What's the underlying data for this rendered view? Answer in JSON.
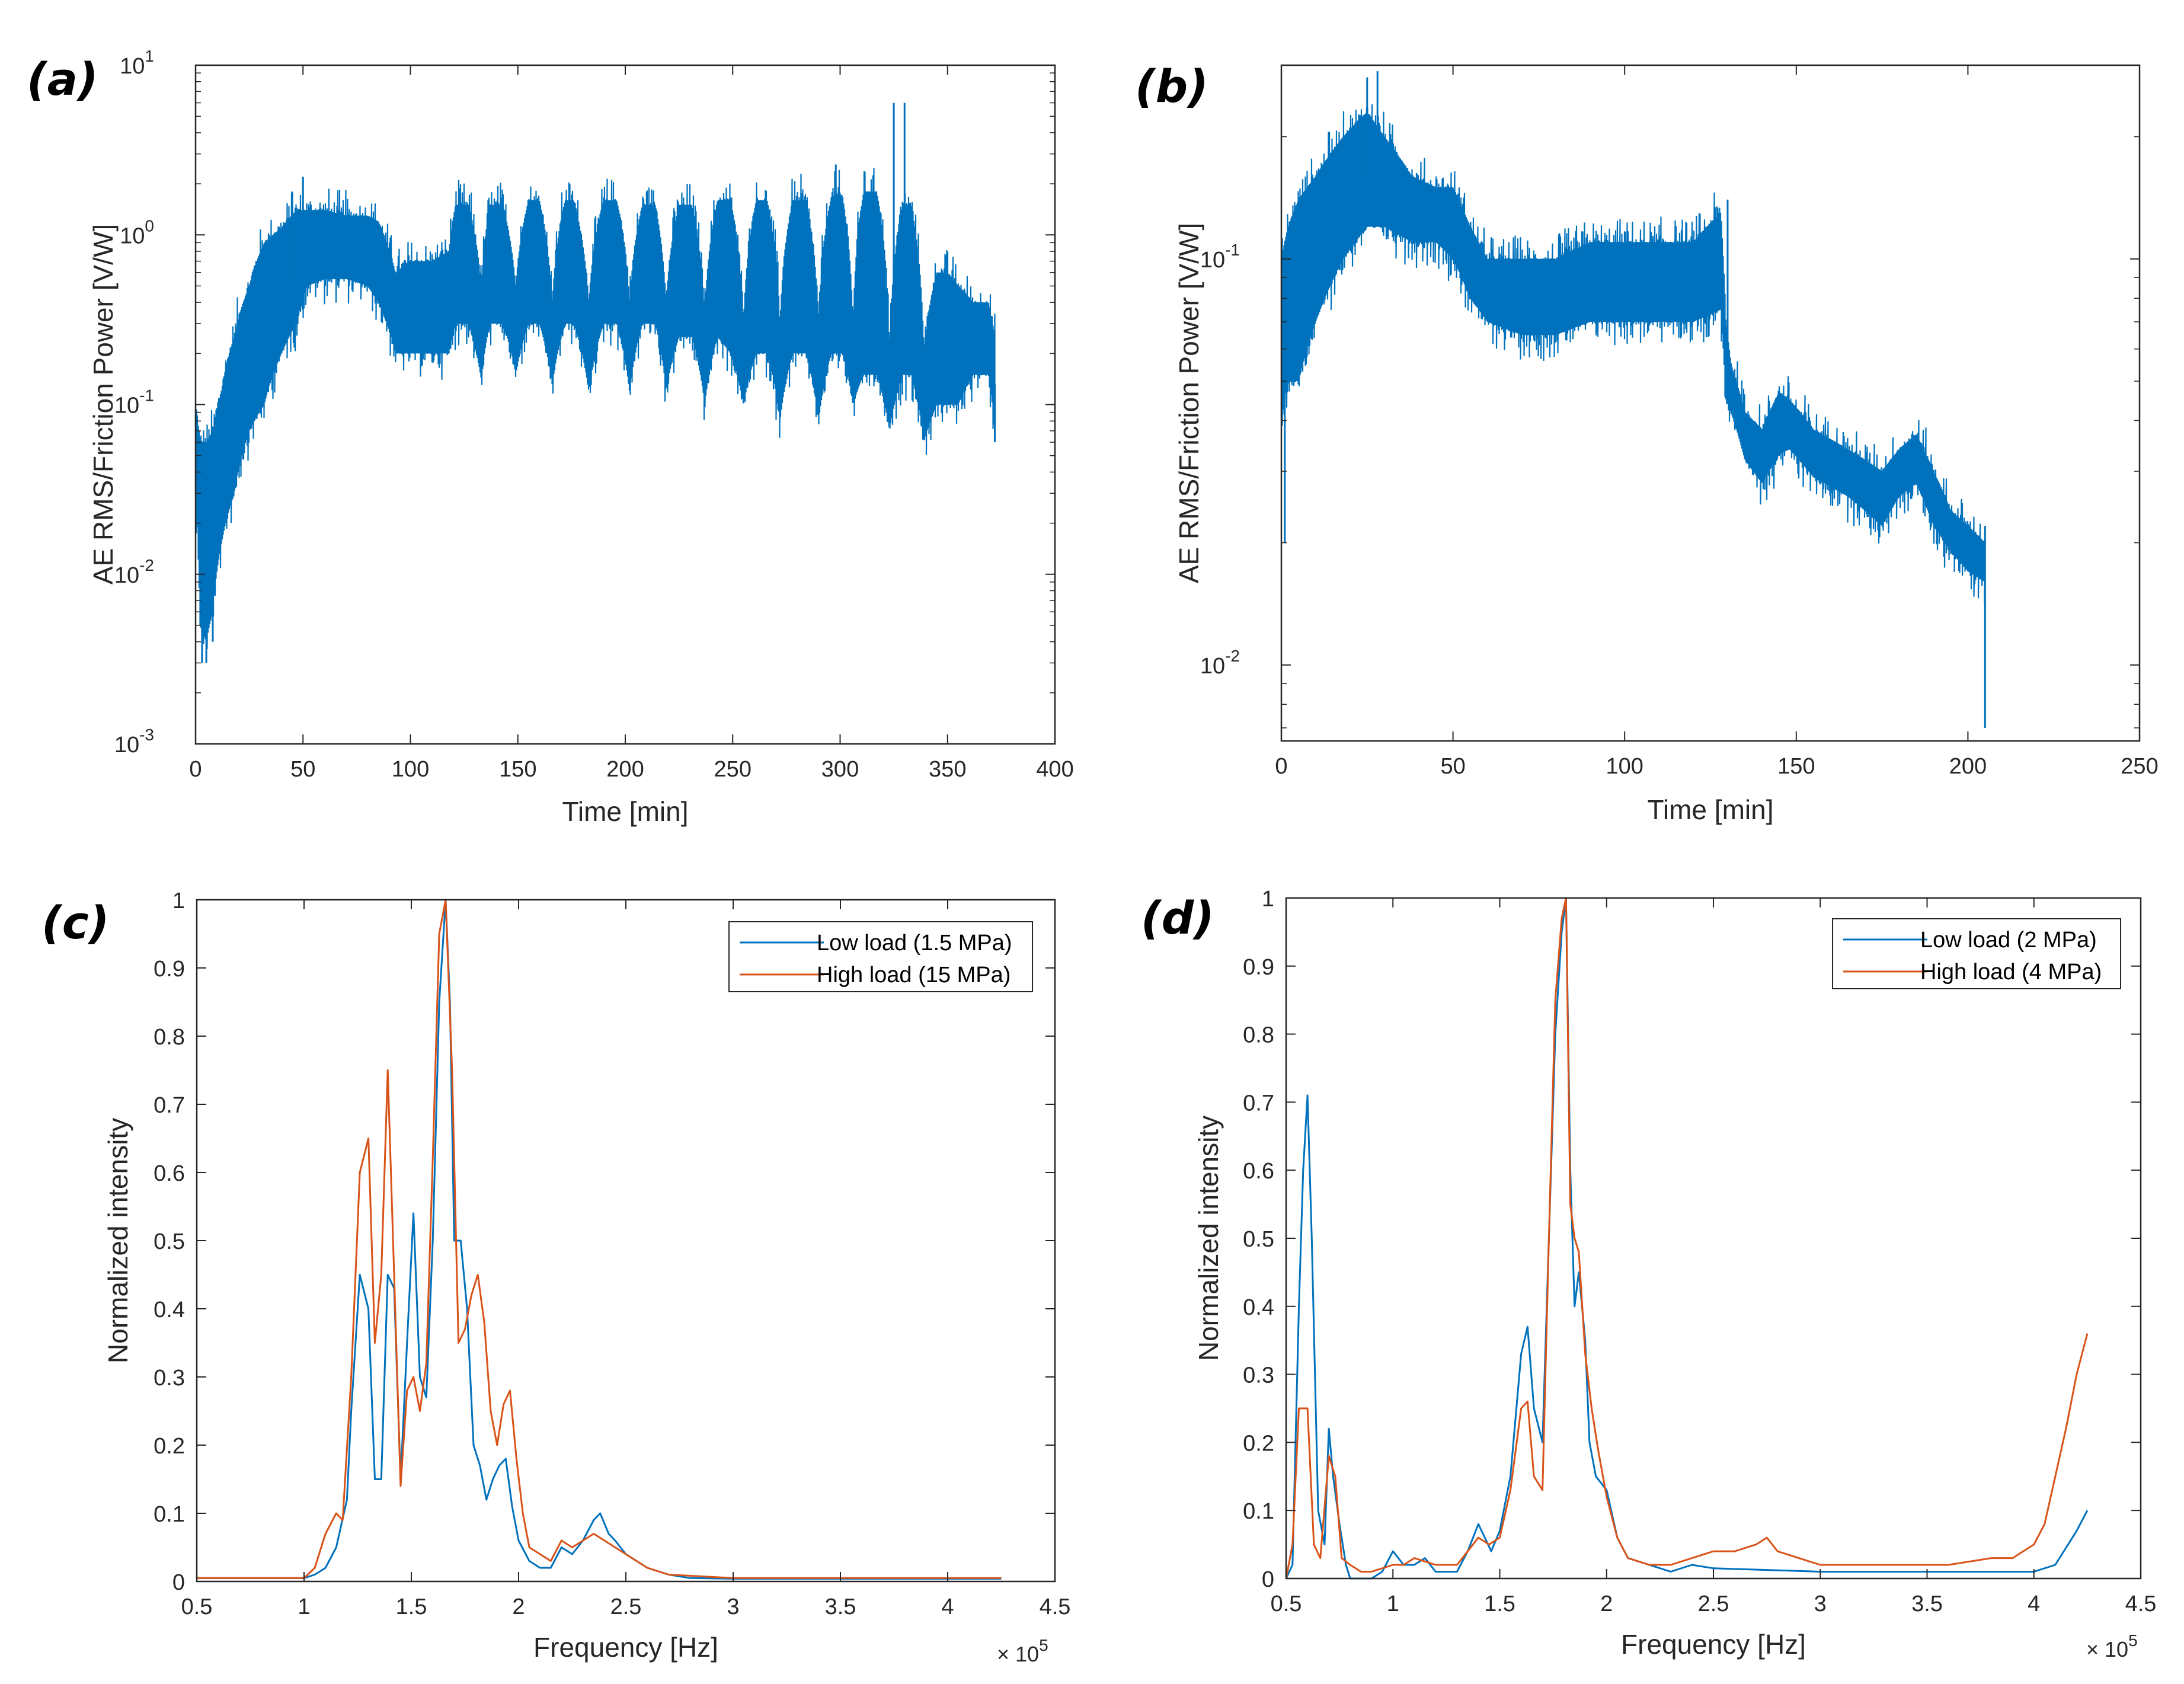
{
  "colors": {
    "blue": "#0072BD",
    "orange": "#D95319",
    "axis": "#262626"
  },
  "chart_data": [
    {
      "id": "a",
      "panel_label": "(a)",
      "type": "line",
      "yscale": "log",
      "title": "",
      "xlabel": "Time [min]",
      "ylabel": "AE RMS/Friction Power [V/W]",
      "xlim": [
        0,
        400
      ],
      "ylim": [
        0.001,
        10
      ],
      "xticks": [
        0,
        50,
        100,
        150,
        200,
        250,
        300,
        350,
        400
      ],
      "xtick_labels": [
        "0",
        "50",
        "100",
        "150",
        "200",
        "250",
        "300",
        "350",
        "400"
      ],
      "yticks": [
        0.001,
        0.01,
        0.1,
        1,
        10
      ],
      "ytick_labels": [
        {
          "base": "10",
          "exp": "-3"
        },
        {
          "base": "10",
          "exp": "-2"
        },
        {
          "base": "10",
          "exp": "-1"
        },
        {
          "base": "10",
          "exp": "0"
        },
        {
          "base": "10",
          "exp": "1"
        }
      ],
      "series": [
        {
          "name": "AE RMS/Friction Power",
          "color": "#0072BD",
          "band": {
            "x": [
              0,
              2,
              5,
              8,
              12,
              18,
              25,
              32,
              40,
              47,
              52,
              60,
              70,
              80,
              85,
              93,
              100,
              110,
              118,
              121,
              127,
              133,
              137,
              143,
              149,
              155,
              160,
              166,
              172,
              176,
              183,
              190,
              196,
              202,
              208,
              214,
              219,
              225,
              231,
              237,
              243,
              249,
              255,
              261,
              266,
              272,
              278,
              284,
              290,
              296,
              301,
              306,
              311,
              317,
              323,
              329,
              333,
              339,
              345,
              350,
              355,
              362,
              369,
              372
            ],
            "lo": [
              0.03,
              0.005,
              0.004,
              0.006,
              0.015,
              0.03,
              0.07,
              0.1,
              0.2,
              0.3,
              0.5,
              0.55,
              0.55,
              0.5,
              0.4,
              0.2,
              0.2,
              0.2,
              0.2,
              0.3,
              0.3,
              0.14,
              0.3,
              0.3,
              0.15,
              0.3,
              0.3,
              0.13,
              0.3,
              0.3,
              0.12,
              0.3,
              0.3,
              0.12,
              0.3,
              0.3,
              0.12,
              0.25,
              0.25,
              0.1,
              0.25,
              0.2,
              0.1,
              0.2,
              0.2,
              0.08,
              0.2,
              0.2,
              0.08,
              0.2,
              0.2,
              0.1,
              0.15,
              0.15,
              0.07,
              0.15,
              0.15,
              0.06,
              0.1,
              0.1,
              0.1,
              0.15,
              0.15,
              0.07
            ],
            "hi": [
              0.1,
              0.06,
              0.06,
              0.07,
              0.12,
              0.25,
              0.5,
              0.9,
              1.1,
              1.4,
              1.4,
              1.4,
              1.3,
              1.3,
              1.2,
              0.6,
              0.7,
              0.7,
              0.8,
              1.5,
              1.5,
              0.5,
              1.5,
              1.5,
              0.5,
              1.6,
              1.6,
              0.4,
              1.6,
              1.6,
              0.4,
              1.6,
              1.6,
              0.4,
              1.5,
              1.5,
              0.4,
              1.5,
              1.5,
              0.35,
              1.6,
              1.6,
              0.3,
              1.6,
              1.6,
              0.3,
              1.6,
              1.6,
              0.3,
              1.7,
              1.7,
              0.3,
              1.8,
              1.8,
              0.2,
              1.5,
              1.5,
              0.2,
              0.6,
              0.6,
              0.5,
              0.4,
              0.4,
              0.25
            ]
          },
          "spikes": [
            [
              3,
              0.003
            ],
            [
              5,
              0.003
            ],
            [
              8,
              0.004
            ],
            [
              45,
              1.8
            ],
            [
              50,
              2.2
            ],
            [
              210,
              1.8
            ],
            [
              298,
              2.6
            ],
            [
              325,
              6.0
            ],
            [
              330,
              6.0
            ],
            [
              372,
              0.06
            ]
          ]
        }
      ]
    },
    {
      "id": "b",
      "panel_label": "(b)",
      "type": "line",
      "yscale": "log",
      "title": "",
      "xlabel": "Time [min]",
      "ylabel": "AE RMS/Friction Power [V/W]",
      "xlim": [
        0,
        250
      ],
      "ylim": [
        0.0065,
        0.3
      ],
      "xticks": [
        0,
        50,
        100,
        150,
        200,
        250
      ],
      "xtick_labels": [
        "0",
        "50",
        "100",
        "150",
        "200",
        "250"
      ],
      "yticks": [
        0.01,
        0.1
      ],
      "ytick_labels": [
        {
          "base": "10",
          "exp": "-2"
        },
        {
          "base": "10",
          "exp": "-1"
        }
      ],
      "series": [
        {
          "name": "AE RMS/Friction Power",
          "color": "#0072BD",
          "band": {
            "x": [
              0,
              2,
              5,
              10,
              18,
              25,
              30,
              38,
              45,
              50,
              55,
              60,
              70,
              80,
              90,
              100,
              110,
              120,
              128,
              129.5,
              131,
              135,
              140,
              145,
              148,
              155,
              165,
              175,
              180,
              185,
              190,
              195,
              200,
              205
            ],
            "lo": [
              0.04,
              0.05,
              0.05,
              0.07,
              0.1,
              0.12,
              0.12,
              0.11,
              0.11,
              0.1,
              0.08,
              0.07,
              0.065,
              0.065,
              0.07,
              0.07,
              0.07,
              0.07,
              0.075,
              0.045,
              0.042,
              0.032,
              0.028,
              0.033,
              0.034,
              0.029,
              0.026,
              0.022,
              0.026,
              0.028,
              0.022,
              0.019,
              0.017,
              0.016
            ],
            "hi": [
              0.1,
              0.12,
              0.14,
              0.16,
              0.2,
              0.23,
              0.2,
              0.16,
              0.15,
              0.15,
              0.12,
              0.1,
              0.1,
              0.1,
              0.11,
              0.11,
              0.11,
              0.11,
              0.13,
              0.07,
              0.055,
              0.042,
              0.038,
              0.047,
              0.045,
              0.038,
              0.034,
              0.03,
              0.034,
              0.037,
              0.03,
              0.024,
              0.022,
              0.02
            ]
          },
          "spikes": [
            [
              1,
              0.02
            ],
            [
              25,
              0.28
            ],
            [
              28,
              0.29
            ],
            [
              130,
              0.14
            ],
            [
              205,
              0.007
            ],
            [
              205,
              0.022
            ]
          ]
        }
      ]
    },
    {
      "id": "c",
      "panel_label": "(c)",
      "type": "line",
      "yscale": "linear",
      "title": "",
      "xlabel": "Frequency [Hz]",
      "ylabel": "Normalized intensity",
      "xlim": [
        0.5,
        4.5
      ],
      "ylim": [
        0,
        1
      ],
      "x_multiplier": {
        "base": "× 10",
        "exp": "5"
      },
      "xticks": [
        0.5,
        1,
        1.5,
        2,
        2.5,
        3,
        3.5,
        4,
        4.5
      ],
      "xtick_labels": [
        "0.5",
        "1",
        "1.5",
        "2",
        "2.5",
        "3",
        "3.5",
        "4",
        "4.5"
      ],
      "yticks": [
        0,
        0.1,
        0.2,
        0.3,
        0.4,
        0.5,
        0.6,
        0.7,
        0.8,
        0.9,
        1
      ],
      "ytick_labels": [
        "0",
        "0.1",
        "0.2",
        "0.3",
        "0.4",
        "0.5",
        "0.6",
        "0.7",
        "0.8",
        "0.9",
        "1"
      ],
      "legend_position": "top-right",
      "series": [
        {
          "name": "Low load (1.5 MPa)",
          "color": "#0072BD",
          "x": [
            0.5,
            0.8,
            1.0,
            1.05,
            1.1,
            1.15,
            1.2,
            1.22,
            1.26,
            1.3,
            1.33,
            1.36,
            1.39,
            1.42,
            1.45,
            1.48,
            1.51,
            1.54,
            1.57,
            1.6,
            1.63,
            1.66,
            1.68,
            1.7,
            1.73,
            1.76,
            1.79,
            1.82,
            1.85,
            1.88,
            1.91,
            1.94,
            1.97,
            2.0,
            2.05,
            2.1,
            2.15,
            2.2,
            2.25,
            2.3,
            2.35,
            2.38,
            2.42,
            2.45,
            2.5,
            2.6,
            2.7,
            2.8,
            3.0,
            3.5,
            4.0,
            4.25
          ],
          "y": [
            0.005,
            0.005,
            0.005,
            0.01,
            0.02,
            0.05,
            0.12,
            0.25,
            0.45,
            0.4,
            0.15,
            0.15,
            0.45,
            0.43,
            0.15,
            0.35,
            0.54,
            0.3,
            0.27,
            0.5,
            0.85,
            1.0,
            0.85,
            0.5,
            0.5,
            0.4,
            0.2,
            0.17,
            0.12,
            0.15,
            0.17,
            0.18,
            0.11,
            0.06,
            0.03,
            0.02,
            0.02,
            0.05,
            0.04,
            0.06,
            0.09,
            0.1,
            0.07,
            0.06,
            0.04,
            0.02,
            0.01,
            0.005,
            0.004,
            0.004,
            0.004,
            0.004
          ]
        },
        {
          "name": "High load (15 MPa)",
          "color": "#D95319",
          "x": [
            0.5,
            0.8,
            1.0,
            1.05,
            1.1,
            1.15,
            1.18,
            1.22,
            1.26,
            1.3,
            1.33,
            1.36,
            1.39,
            1.42,
            1.45,
            1.48,
            1.51,
            1.54,
            1.57,
            1.6,
            1.63,
            1.66,
            1.69,
            1.72,
            1.75,
            1.78,
            1.81,
            1.84,
            1.87,
            1.9,
            1.93,
            1.96,
            1.99,
            2.02,
            2.05,
            2.1,
            2.15,
            2.2,
            2.25,
            2.3,
            2.35,
            2.4,
            2.45,
            2.5,
            2.6,
            2.7,
            3.0,
            3.5,
            4.0,
            4.25
          ],
          "y": [
            0.005,
            0.005,
            0.005,
            0.02,
            0.07,
            0.1,
            0.09,
            0.3,
            0.6,
            0.65,
            0.35,
            0.45,
            0.75,
            0.45,
            0.14,
            0.28,
            0.3,
            0.25,
            0.32,
            0.62,
            0.95,
            1.0,
            0.75,
            0.35,
            0.37,
            0.42,
            0.45,
            0.38,
            0.25,
            0.2,
            0.26,
            0.28,
            0.18,
            0.1,
            0.05,
            0.04,
            0.03,
            0.06,
            0.05,
            0.06,
            0.07,
            0.06,
            0.05,
            0.04,
            0.02,
            0.01,
            0.005,
            0.005,
            0.005,
            0.005
          ]
        }
      ]
    },
    {
      "id": "d",
      "panel_label": "(d)",
      "type": "line",
      "yscale": "linear",
      "title": "",
      "xlabel": "Frequency [Hz]",
      "ylabel": "Normalized intensity",
      "xlim": [
        0.5,
        4.5
      ],
      "ylim": [
        0,
        1
      ],
      "x_multiplier": {
        "base": "× 10",
        "exp": "5"
      },
      "xticks": [
        0.5,
        1,
        1.5,
        2,
        2.5,
        3,
        3.5,
        4,
        4.5
      ],
      "xtick_labels": [
        "0.5",
        "1",
        "1.5",
        "2",
        "2.5",
        "3",
        "3.5",
        "4",
        "4.5"
      ],
      "yticks": [
        0,
        0.1,
        0.2,
        0.3,
        0.4,
        0.5,
        0.6,
        0.7,
        0.8,
        0.9,
        1
      ],
      "ytick_labels": [
        "0",
        "0.1",
        "0.2",
        "0.3",
        "0.4",
        "0.5",
        "0.6",
        "0.7",
        "0.8",
        "0.9",
        "1"
      ],
      "legend_position": "top-right",
      "series": [
        {
          "name": "Low load (2 MPa)",
          "color": "#0072BD",
          "x": [
            0.5,
            0.53,
            0.56,
            0.58,
            0.6,
            0.62,
            0.65,
            0.68,
            0.7,
            0.72,
            0.75,
            0.78,
            0.8,
            0.85,
            0.9,
            0.95,
            1.0,
            1.05,
            1.1,
            1.15,
            1.2,
            1.3,
            1.35,
            1.4,
            1.43,
            1.46,
            1.5,
            1.55,
            1.6,
            1.63,
            1.66,
            1.7,
            1.73,
            1.76,
            1.79,
            1.81,
            1.83,
            1.85,
            1.87,
            1.9,
            1.92,
            1.95,
            2.0,
            2.05,
            2.1,
            2.2,
            2.3,
            2.4,
            2.5,
            3.0,
            3.5,
            4.0,
            4.1,
            4.2,
            4.25
          ],
          "y": [
            0.0,
            0.02,
            0.4,
            0.6,
            0.71,
            0.5,
            0.1,
            0.05,
            0.22,
            0.15,
            0.08,
            0.02,
            0.0,
            0.0,
            0.0,
            0.01,
            0.04,
            0.02,
            0.02,
            0.03,
            0.01,
            0.01,
            0.04,
            0.08,
            0.06,
            0.04,
            0.07,
            0.15,
            0.33,
            0.37,
            0.25,
            0.2,
            0.5,
            0.8,
            0.95,
            1.0,
            0.6,
            0.4,
            0.45,
            0.35,
            0.2,
            0.15,
            0.13,
            0.06,
            0.03,
            0.02,
            0.01,
            0.02,
            0.015,
            0.01,
            0.01,
            0.01,
            0.02,
            0.07,
            0.1
          ]
        },
        {
          "name": "High load (4 MPa)",
          "color": "#D95319",
          "x": [
            0.5,
            0.53,
            0.56,
            0.6,
            0.63,
            0.66,
            0.7,
            0.73,
            0.76,
            0.8,
            0.85,
            0.9,
            1.0,
            1.05,
            1.1,
            1.2,
            1.3,
            1.35,
            1.4,
            1.45,
            1.5,
            1.55,
            1.6,
            1.63,
            1.66,
            1.7,
            1.73,
            1.76,
            1.79,
            1.81,
            1.83,
            1.85,
            1.87,
            1.9,
            1.93,
            1.96,
            2.0,
            2.05,
            2.1,
            2.2,
            2.3,
            2.4,
            2.5,
            2.6,
            2.7,
            2.75,
            2.8,
            2.9,
            3.0,
            3.2,
            3.4,
            3.6,
            3.8,
            3.9,
            4.0,
            4.05,
            4.1,
            4.15,
            4.2,
            4.25
          ],
          "y": [
            0.0,
            0.05,
            0.25,
            0.25,
            0.05,
            0.03,
            0.18,
            0.15,
            0.03,
            0.02,
            0.01,
            0.01,
            0.02,
            0.02,
            0.03,
            0.02,
            0.02,
            0.04,
            0.06,
            0.05,
            0.06,
            0.13,
            0.25,
            0.26,
            0.15,
            0.13,
            0.5,
            0.85,
            0.97,
            1.0,
            0.55,
            0.5,
            0.48,
            0.33,
            0.25,
            0.19,
            0.12,
            0.06,
            0.03,
            0.02,
            0.02,
            0.03,
            0.04,
            0.04,
            0.05,
            0.06,
            0.04,
            0.03,
            0.02,
            0.02,
            0.02,
            0.02,
            0.03,
            0.03,
            0.05,
            0.08,
            0.15,
            0.22,
            0.3,
            0.36
          ]
        }
      ]
    }
  ]
}
